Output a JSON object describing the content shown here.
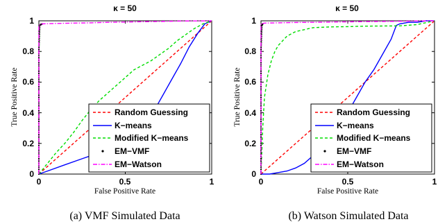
{
  "figure": {
    "captions": [
      "(a)  VMF Simulated Data",
      "(b)  Watson Simulated Data"
    ]
  },
  "legend_entries": [
    "Random Guessing",
    "K−means",
    "Modified K−means",
    "EM−VMF",
    "EM−Watson"
  ],
  "colors": {
    "random_guessing": "#ff0000",
    "k_means": "#0000ff",
    "modified_k_means": "#00dd00",
    "em_vmf": "#000000",
    "em_watson": "#ff00ff"
  },
  "chart_data": [
    {
      "type": "line",
      "title": "κ = 50",
      "xlabel": "False Positive Rate",
      "ylabel": "True Positive Rate",
      "xlim": [
        0,
        1
      ],
      "ylim": [
        0,
        1
      ],
      "xticks": [
        "0",
        "0.5",
        "1"
      ],
      "yticks": [
        "0",
        "0.2",
        "0.4",
        "0.6",
        "0.8",
        "1"
      ],
      "grid": false,
      "legend": "bottom-right",
      "series": [
        {
          "name": "Random Guessing",
          "x": [
            0,
            1
          ],
          "y": [
            0,
            1
          ]
        },
        {
          "name": "K−means",
          "x": [
            0,
            0.05,
            0.15,
            0.25,
            0.35,
            0.42,
            0.5,
            0.56,
            0.62,
            0.67,
            0.72,
            0.77,
            0.82,
            0.87,
            0.92,
            0.96,
            1.0
          ],
          "y": [
            0,
            0.02,
            0.06,
            0.1,
            0.14,
            0.18,
            0.22,
            0.27,
            0.33,
            0.42,
            0.52,
            0.62,
            0.72,
            0.83,
            0.92,
            0.98,
            1.0
          ]
        },
        {
          "name": "Modified K−means",
          "x": [
            0,
            0.05,
            0.1,
            0.15,
            0.2,
            0.25,
            0.3,
            0.35,
            0.4,
            0.45,
            0.5,
            0.55,
            0.6,
            0.65,
            0.7,
            0.75,
            0.8,
            0.85,
            0.9,
            0.95,
            1.0
          ],
          "y": [
            0,
            0.07,
            0.14,
            0.2,
            0.27,
            0.35,
            0.42,
            0.48,
            0.53,
            0.58,
            0.63,
            0.68,
            0.71,
            0.74,
            0.78,
            0.82,
            0.87,
            0.91,
            0.95,
            0.98,
            1.0
          ]
        },
        {
          "name": "EM−VMF",
          "x": [
            0,
            0,
            0,
            0,
            0,
            0.005,
            0.01,
            0.02
          ],
          "y": [
            0,
            0.2,
            0.4,
            0.6,
            0.8,
            0.97,
            0.975,
            0.98
          ]
        },
        {
          "name": "EM−Watson",
          "x": [
            0,
            0,
            0,
            0.02,
            0.1,
            0.2,
            0.3,
            0.4,
            0.5,
            0.6,
            0.7,
            0.8,
            0.9,
            1.0
          ],
          "y": [
            0,
            0.5,
            0.97,
            0.98,
            0.983,
            0.985,
            0.987,
            0.99,
            0.992,
            0.994,
            0.996,
            0.998,
            0.999,
            1.0
          ]
        }
      ]
    },
    {
      "type": "line",
      "title": "κ = 50",
      "xlabel": "False Positive Rate",
      "ylabel": "True Positive Rate",
      "xlim": [
        0,
        1
      ],
      "ylim": [
        0,
        1
      ],
      "xticks": [
        "0",
        "0.5",
        "1"
      ],
      "yticks": [
        "0",
        "0.2",
        "0.4",
        "0.6",
        "0.8",
        "1"
      ],
      "grid": false,
      "legend": "bottom-right",
      "series": [
        {
          "name": "Random Guessing",
          "x": [
            0,
            1
          ],
          "y": [
            0,
            1
          ]
        },
        {
          "name": "K−means",
          "x": [
            0,
            0.05,
            0.1,
            0.15,
            0.2,
            0.25,
            0.3,
            0.35,
            0.4,
            0.45,
            0.5,
            0.55,
            0.6,
            0.65,
            0.7,
            0.75,
            0.78,
            0.8,
            0.85,
            0.9,
            0.95,
            1.0
          ],
          "y": [
            0,
            0.0,
            0.01,
            0.02,
            0.04,
            0.07,
            0.12,
            0.17,
            0.23,
            0.3,
            0.4,
            0.5,
            0.6,
            0.68,
            0.78,
            0.88,
            0.97,
            0.98,
            0.99,
            0.99,
            1.0,
            1.0
          ]
        },
        {
          "name": "Modified K−means",
          "x": [
            0,
            0.01,
            0.02,
            0.04,
            0.06,
            0.08,
            0.1,
            0.15,
            0.2,
            0.3,
            0.4,
            0.5,
            0.6,
            0.7,
            0.8,
            0.9,
            1.0
          ],
          "y": [
            0,
            0.3,
            0.5,
            0.65,
            0.74,
            0.8,
            0.84,
            0.9,
            0.93,
            0.955,
            0.96,
            0.962,
            0.965,
            0.966,
            0.967,
            0.975,
            1.0
          ]
        },
        {
          "name": "EM−VMF",
          "x": [
            0,
            0,
            0,
            0,
            0,
            0.005,
            0.01
          ],
          "y": [
            0,
            0.2,
            0.4,
            0.6,
            0.8,
            0.97,
            0.98
          ]
        },
        {
          "name": "EM−Watson",
          "x": [
            0,
            0,
            0,
            0.02,
            0.1,
            0.2,
            0.3,
            0.4,
            0.5,
            0.6,
            0.7,
            0.8,
            0.9,
            1.0
          ],
          "y": [
            0,
            0.5,
            0.98,
            0.985,
            0.987,
            0.989,
            0.99,
            0.992,
            0.993,
            0.995,
            0.996,
            0.997,
            0.999,
            1.0
          ]
        }
      ]
    }
  ]
}
